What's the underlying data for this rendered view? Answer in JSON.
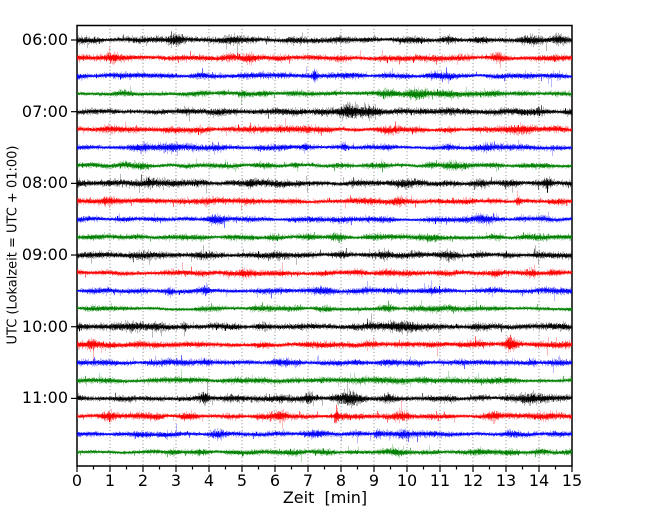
{
  "chart_data": {
    "type": "line",
    "subtype": "seismogram-helicorder",
    "title": "",
    "xlabel": "Zeit  [min]",
    "ylabel": "UTC (Lokalzeit = UTC + 01:00)",
    "xlim": [
      0,
      15
    ],
    "minutes_per_row": 15,
    "x_tick_labels": [
      "0",
      "1",
      "2",
      "3",
      "4",
      "5",
      "6",
      "7",
      "8",
      "9",
      "10",
      "11",
      "12",
      "13",
      "14",
      "15"
    ],
    "x_minor_tick_step": 0.5,
    "y_tick_labels": [
      "06:00",
      "07:00",
      "08:00",
      "09:00",
      "10:00",
      "11:00"
    ],
    "grid": {
      "style": "vertical dotted line at every minute",
      "color": "#777777"
    },
    "trace_color_cycle": [
      "#000000",
      "#ff0000",
      "#0000ff",
      "#008000"
    ],
    "event_format": "[time_min, amplitude_boost, sigma_min]",
    "rows": [
      {
        "utc": "06:00",
        "color": "#000000",
        "events": [
          [
            3.0,
            0.9,
            0.12
          ],
          [
            4.7,
            1.1,
            0.15
          ],
          [
            13.9,
            0.7,
            0.25
          ],
          [
            14.6,
            1.0,
            0.12
          ]
        ]
      },
      {
        "utc": "06:15",
        "color": "#ff0000",
        "events": [
          [
            1.05,
            1.0,
            0.15
          ],
          [
            4.4,
            0.6,
            0.25
          ],
          [
            5.2,
            0.8,
            0.15
          ],
          [
            12.8,
            0.6,
            0.15
          ],
          [
            14.5,
            0.5,
            0.2
          ]
        ]
      },
      {
        "utc": "06:30",
        "color": "#0000ff",
        "events": [
          [
            5.6,
            0.5,
            0.15
          ],
          [
            7.2,
            1.8,
            0.05
          ],
          [
            11.0,
            0.4,
            0.3
          ]
        ]
      },
      {
        "utc": "06:45",
        "color": "#008000",
        "events": [
          [
            4.4,
            0.8,
            0.08
          ],
          [
            5.0,
            0.6,
            0.08
          ],
          [
            7.8,
            0.5,
            0.07
          ],
          [
            10.3,
            0.9,
            0.9
          ],
          [
            12.1,
            0.5,
            0.3
          ]
        ]
      },
      {
        "utc": "07:00",
        "color": "#000000",
        "events": [
          [
            2.5,
            0.4,
            0.3
          ],
          [
            8.2,
            1.9,
            0.18
          ],
          [
            8.8,
            0.7,
            0.4
          ],
          [
            10.6,
            0.5,
            0.3
          ]
        ]
      },
      {
        "utc": "07:15",
        "color": "#ff0000",
        "events": [
          [
            1.5,
            0.4,
            0.3
          ],
          [
            5.5,
            0.4,
            0.2
          ],
          [
            9.5,
            0.4,
            0.3
          ],
          [
            13.5,
            0.4,
            0.2
          ]
        ]
      },
      {
        "utc": "07:30",
        "color": "#0000ff",
        "events": [
          [
            2.6,
            0.6,
            0.7
          ],
          [
            6.9,
            1.0,
            0.06
          ],
          [
            8.1,
            0.9,
            0.06
          ],
          [
            12.5,
            0.4,
            0.2
          ]
        ]
      },
      {
        "utc": "07:45",
        "color": "#008000",
        "events": [
          [
            2.0,
            0.4,
            0.3
          ],
          [
            6.6,
            0.8,
            0.08
          ],
          [
            9.3,
            0.7,
            0.1
          ],
          [
            10.7,
            0.8,
            0.12
          ],
          [
            11.5,
            0.5,
            0.2
          ]
        ]
      },
      {
        "utc": "08:00",
        "color": "#000000",
        "events": [
          [
            2.2,
            0.5,
            0.15
          ],
          [
            5.2,
            0.9,
            0.12
          ],
          [
            10.0,
            0.4,
            0.4
          ],
          [
            14.25,
            1.2,
            0.08
          ]
        ]
      },
      {
        "utc": "08:15",
        "color": "#ff0000",
        "events": [
          [
            0.9,
            0.5,
            0.1
          ],
          [
            3.2,
            0.5,
            0.1
          ],
          [
            6.1,
            0.6,
            0.12
          ],
          [
            9.7,
            0.7,
            0.12
          ],
          [
            11.9,
            0.4,
            0.2
          ],
          [
            13.35,
            1.6,
            0.06
          ]
        ]
      },
      {
        "utc": "08:30",
        "color": "#0000ff",
        "events": [
          [
            4.2,
            0.8,
            0.2
          ],
          [
            8.3,
            0.5,
            0.35
          ],
          [
            12.4,
            0.5,
            0.25
          ],
          [
            13.4,
            0.4,
            0.2
          ]
        ]
      },
      {
        "utc": "08:45",
        "color": "#008000",
        "events": [
          [
            2.7,
            0.4,
            0.2
          ],
          [
            5.9,
            0.6,
            0.12
          ],
          [
            7.8,
            0.6,
            0.15
          ],
          [
            10.6,
            0.4,
            0.25
          ]
        ]
      },
      {
        "utc": "09:00",
        "color": "#000000",
        "events": [
          [
            9.3,
            0.8,
            0.15
          ],
          [
            11.3,
            0.4,
            0.25
          ],
          [
            13.0,
            0.3,
            0.3
          ]
        ]
      },
      {
        "utc": "09:15",
        "color": "#ff0000",
        "events": [
          [
            5.1,
            0.8,
            0.15
          ],
          [
            8.7,
            0.4,
            0.25
          ],
          [
            11.2,
            0.6,
            0.25
          ],
          [
            12.7,
            0.8,
            0.12
          ],
          [
            13.8,
            0.8,
            0.12
          ],
          [
            14.4,
            0.6,
            0.15
          ]
        ]
      },
      {
        "utc": "09:30",
        "color": "#0000ff",
        "events": [
          [
            2.8,
            0.9,
            0.08
          ],
          [
            3.9,
            1.3,
            0.06
          ],
          [
            7.4,
            0.9,
            0.3
          ],
          [
            8.8,
            0.7,
            0.12
          ],
          [
            10.5,
            0.4,
            0.2
          ]
        ]
      },
      {
        "utc": "09:45",
        "color": "#008000",
        "events": [
          [
            5.3,
            0.5,
            0.1
          ],
          [
            9.4,
            0.5,
            0.12
          ],
          [
            12.0,
            0.3,
            0.3
          ]
        ]
      },
      {
        "utc": "10:00",
        "color": "#000000",
        "events": [
          [
            1.7,
            0.4,
            0.2
          ],
          [
            3.25,
            1.4,
            0.05
          ],
          [
            9.6,
            0.8,
            0.35
          ],
          [
            14.8,
            0.6,
            0.1
          ]
        ]
      },
      {
        "utc": "10:15",
        "color": "#ff0000",
        "events": [
          [
            0.45,
            1.0,
            0.1
          ],
          [
            1.8,
            0.7,
            0.2
          ],
          [
            8.5,
            0.4,
            0.4
          ],
          [
            13.1,
            1.8,
            0.07
          ],
          [
            13.4,
            0.6,
            0.2
          ]
        ]
      },
      {
        "utc": "10:30",
        "color": "#0000ff",
        "events": [
          [
            3.9,
            0.6,
            0.12
          ],
          [
            6.3,
            0.4,
            0.3
          ],
          [
            9.8,
            0.4,
            0.3
          ],
          [
            13.8,
            0.6,
            0.08
          ]
        ]
      },
      {
        "utc": "10:45",
        "color": "#008000",
        "events": [
          [
            1.0,
            0.4,
            0.3
          ],
          [
            8.6,
            1.0,
            0.4
          ],
          [
            10.6,
            0.5,
            0.15
          ],
          [
            12.2,
            0.4,
            0.25
          ]
        ]
      },
      {
        "utc": "11:00",
        "color": "#000000",
        "events": [
          [
            3.85,
            1.5,
            0.08
          ],
          [
            7.0,
            0.6,
            0.08
          ],
          [
            8.2,
            1.0,
            0.3
          ],
          [
            9.4,
            0.7,
            0.12
          ],
          [
            13.8,
            0.5,
            0.2
          ]
        ]
      },
      {
        "utc": "11:15",
        "color": "#ff0000",
        "events": [
          [
            1.0,
            0.4,
            0.2
          ],
          [
            3.5,
            0.5,
            0.15
          ],
          [
            6.2,
            0.5,
            0.12
          ],
          [
            7.85,
            2.0,
            0.04
          ],
          [
            9.7,
            0.5,
            0.25
          ],
          [
            12.6,
            0.5,
            0.15
          ],
          [
            14.1,
            1.2,
            0.2
          ]
        ]
      },
      {
        "utc": "11:30",
        "color": "#0000ff",
        "events": [
          [
            1.3,
            0.5,
            0.15
          ],
          [
            4.3,
            0.5,
            0.12
          ],
          [
            7.3,
            0.5,
            0.12
          ],
          [
            9.1,
            0.9,
            0.08
          ],
          [
            9.9,
            0.7,
            0.12
          ],
          [
            13.2,
            0.4,
            0.15
          ]
        ]
      },
      {
        "utc": "11:45",
        "color": "#008000",
        "events": [
          [
            2.9,
            0.8,
            0.1
          ],
          [
            5.5,
            0.4,
            0.25
          ],
          [
            9.7,
            0.6,
            0.15
          ],
          [
            12.0,
            0.3,
            0.35
          ]
        ]
      }
    ]
  }
}
